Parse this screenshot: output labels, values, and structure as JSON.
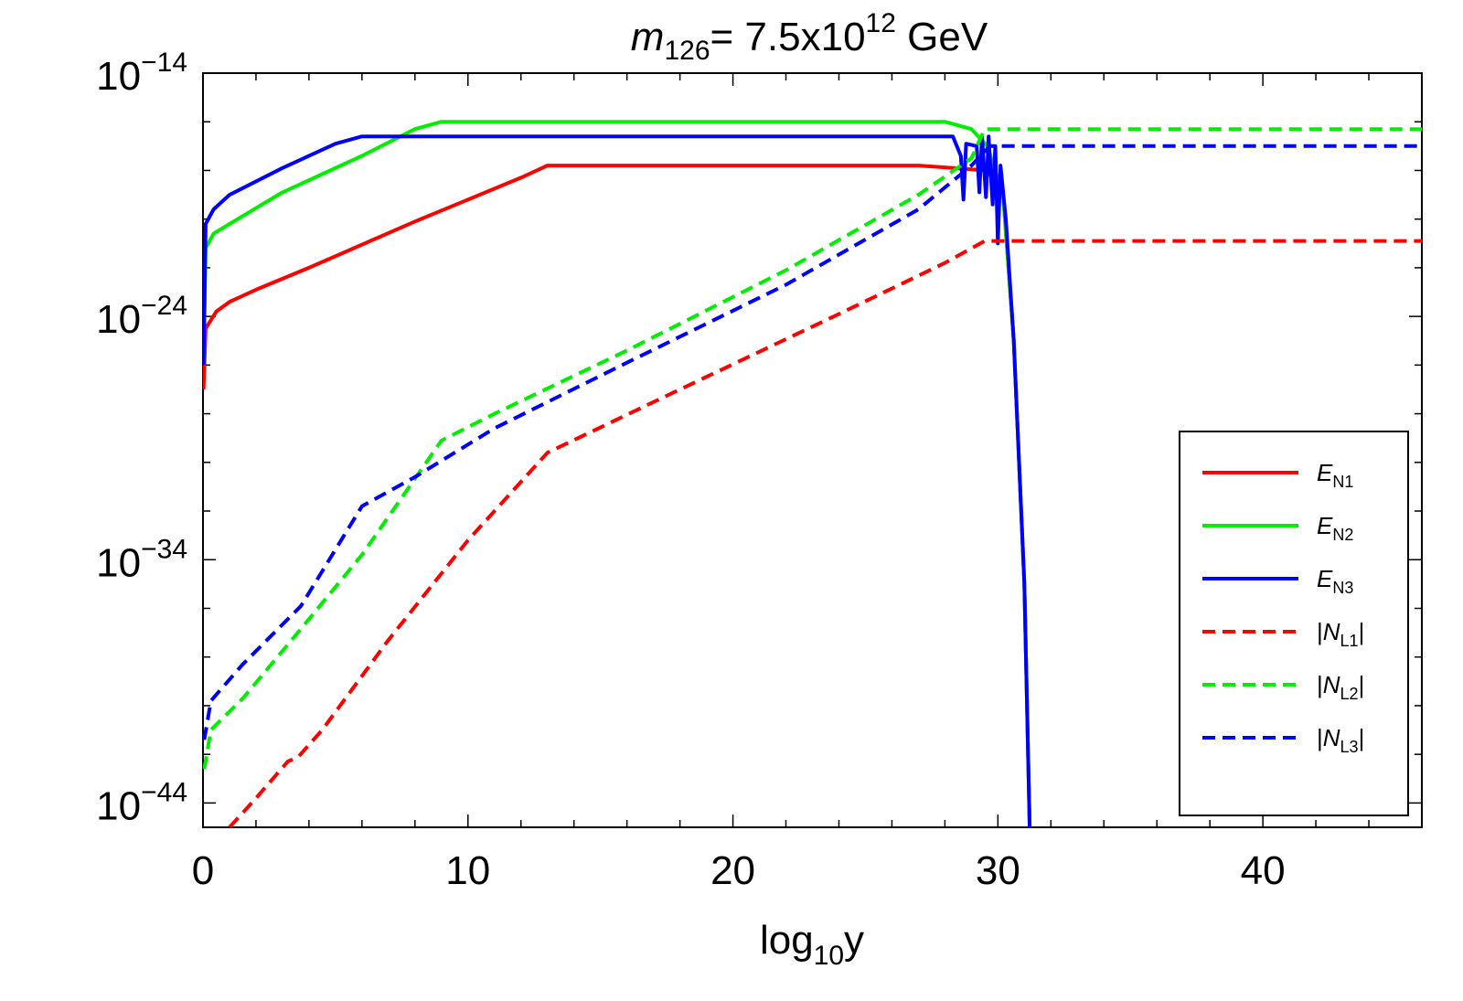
{
  "chart_data": {
    "type": "line",
    "title": {
      "var": "m",
      "sub": "126",
      "eq": "= 7.5x10",
      "sup": "12",
      "unit": " GeV"
    },
    "xlabel": {
      "pre": "log",
      "sub": "10",
      "post": "y"
    },
    "ylabel": "",
    "xlim": [
      0,
      46
    ],
    "ylim_log10": [
      -45,
      -14
    ],
    "y_scale": "log",
    "x_ticks": [
      0,
      10,
      20,
      30,
      40
    ],
    "x_tick_labels": [
      "0",
      "10",
      "20",
      "30",
      "40"
    ],
    "y_ticks_log10": [
      -14,
      -24,
      -34,
      -44
    ],
    "y_tick_labels": [
      {
        "base": "10",
        "exp": "−14"
      },
      {
        "base": "10",
        "exp": "−24"
      },
      {
        "base": "10",
        "exp": "−34"
      },
      {
        "base": "10",
        "exp": "−44"
      }
    ],
    "legend_position": "bottom-right",
    "series": [
      {
        "name": "E_N1",
        "color": "#ff0000",
        "dash": false,
        "legend": {
          "var": "E",
          "sub": "N1",
          "pre": "",
          "post": ""
        },
        "points_log10": [
          [
            0.02,
            -27
          ],
          [
            0.1,
            -24.5
          ],
          [
            0.5,
            -23.8
          ],
          [
            1,
            -23.4
          ],
          [
            2,
            -22.9
          ],
          [
            4,
            -22.0
          ],
          [
            8,
            -20.1
          ],
          [
            12,
            -18.3
          ],
          [
            13,
            -17.8
          ],
          [
            27,
            -17.8
          ],
          [
            29.6,
            -18.0
          ],
          [
            30.2,
            -19.0
          ],
          [
            30.6,
            -25.0
          ],
          [
            31.0,
            -35.0
          ],
          [
            31.2,
            -45.0
          ]
        ]
      },
      {
        "name": "E_N2",
        "color": "#00ee00",
        "dash": false,
        "legend": {
          "var": "E",
          "sub": "N2",
          "pre": "",
          "post": ""
        },
        "points_log10": [
          [
            0.02,
            -26
          ],
          [
            0.1,
            -21.2
          ],
          [
            0.4,
            -20.6
          ],
          [
            1,
            -20.2
          ],
          [
            3,
            -18.9
          ],
          [
            6,
            -17.4
          ],
          [
            8,
            -16.3
          ],
          [
            9,
            -16.0
          ],
          [
            28,
            -16.0
          ],
          [
            29,
            -16.3
          ],
          [
            29.6,
            -17.0
          ],
          [
            30.2,
            -19.0
          ],
          [
            30.6,
            -25.0
          ],
          [
            31.0,
            -35.0
          ],
          [
            31.2,
            -45.0
          ]
        ]
      },
      {
        "name": "E_N3",
        "color": "#0000ff",
        "dash": false,
        "legend": {
          "var": "E",
          "sub": "N3",
          "pre": "",
          "post": ""
        },
        "points_log10": [
          [
            0.02,
            -26
          ],
          [
            0.1,
            -20.2
          ],
          [
            0.4,
            -19.6
          ],
          [
            1,
            -19.0
          ],
          [
            3,
            -17.9
          ],
          [
            5,
            -16.9
          ],
          [
            6,
            -16.6
          ],
          [
            28.3,
            -16.6
          ],
          [
            28.6,
            -17.4
          ],
          [
            28.7,
            -19.2
          ],
          [
            28.8,
            -16.9
          ],
          [
            29.2,
            -17.0
          ],
          [
            29.3,
            -18.9
          ],
          [
            29.4,
            -16.6
          ],
          [
            29.55,
            -19.1
          ],
          [
            29.65,
            -16.6
          ],
          [
            29.8,
            -19.4
          ],
          [
            29.9,
            -17.0
          ],
          [
            30.0,
            -21.0
          ],
          [
            30.1,
            -17.8
          ],
          [
            30.3,
            -20.0
          ],
          [
            30.6,
            -25.0
          ],
          [
            31.0,
            -35.0
          ],
          [
            31.2,
            -45.0
          ]
        ]
      },
      {
        "name": "|N_L1|",
        "color": "#ff0000",
        "dash": true,
        "legend": {
          "var": "N",
          "sub": "L1",
          "pre": "|",
          "post": "|"
        },
        "points_log10": [
          [
            1.0,
            -45.0
          ],
          [
            2.0,
            -43.8
          ],
          [
            3.2,
            -42.3
          ],
          [
            3.6,
            -42.1
          ],
          [
            4.5,
            -41.0
          ],
          [
            7,
            -37.3
          ],
          [
            10,
            -33.2
          ],
          [
            13,
            -29.6
          ],
          [
            18,
            -27.0
          ],
          [
            24,
            -23.9
          ],
          [
            28,
            -21.8
          ],
          [
            29.5,
            -20.9
          ],
          [
            46,
            -20.9
          ]
        ]
      },
      {
        "name": "|N_L2|",
        "color": "#00ee00",
        "dash": true,
        "legend": {
          "var": "N",
          "sub": "L2",
          "pre": "|",
          "post": "|"
        },
        "points_log10": [
          [
            0.05,
            -42.6
          ],
          [
            0.3,
            -41.0
          ],
          [
            1.5,
            -39.7
          ],
          [
            3.5,
            -37.1
          ],
          [
            6,
            -33.8
          ],
          [
            9,
            -29.1
          ],
          [
            11,
            -28.0
          ],
          [
            16,
            -25.4
          ],
          [
            22,
            -22.1
          ],
          [
            27,
            -19.0
          ],
          [
            29,
            -17.5
          ],
          [
            29.5,
            -16.3
          ],
          [
            46,
            -16.3
          ]
        ]
      },
      {
        "name": "|N_L3|",
        "color": "#0000ff",
        "dash": true,
        "legend": {
          "var": "N",
          "sub": "L3",
          "pre": "|",
          "post": "|"
        },
        "points_log10": [
          [
            0.05,
            -41.4
          ],
          [
            0.3,
            -39.8
          ],
          [
            1.5,
            -38.3
          ],
          [
            3.7,
            -35.9
          ],
          [
            6,
            -31.8
          ],
          [
            8,
            -30.6
          ],
          [
            11,
            -28.6
          ],
          [
            16,
            -25.9
          ],
          [
            22,
            -22.7
          ],
          [
            27,
            -19.6
          ],
          [
            29,
            -17.8
          ],
          [
            29.7,
            -17.0
          ],
          [
            46,
            -17.0
          ]
        ]
      }
    ]
  }
}
